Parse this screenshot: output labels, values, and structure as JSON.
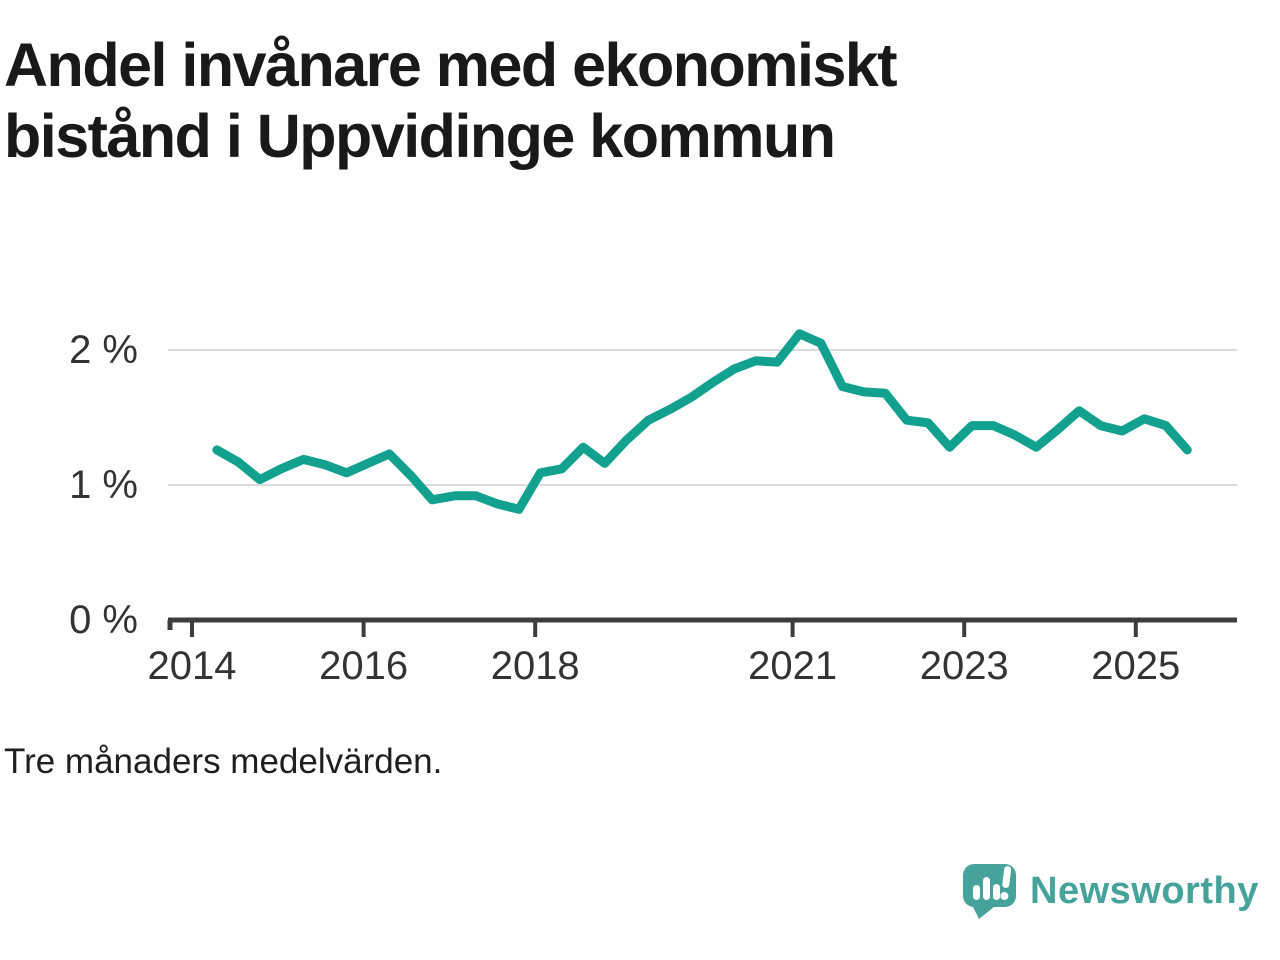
{
  "title": "Andel invånare med ekonomiskt bistånd i Uppvidinge kommun",
  "footnote": "Tre månaders medelvärden.",
  "brand": {
    "name": "Newsworthy",
    "color": "#45a39b",
    "mark": "speech-bubble-bar-chart-exclamation"
  },
  "colors": {
    "line": "#12a18f",
    "grid": "#dcdcdc",
    "axis": "#3d3d3d",
    "tick_text": "#333333",
    "title_text": "#191919"
  },
  "chart_data": {
    "type": "line",
    "title": "Andel invånare med ekonomiskt bistånd i Uppvidinge kommun",
    "note": "Tre månaders medelvärden.",
    "unit": "%",
    "xlabel": "",
    "ylabel": "",
    "grid": "horizontal",
    "legend": "none",
    "xlim": [
      2013.7,
      2026.2
    ],
    "ylim": [
      0,
      2.37
    ],
    "x_ticks": [
      {
        "year": 2014,
        "label": "2014"
      },
      {
        "year": 2016,
        "label": "2016"
      },
      {
        "year": 2018,
        "label": "2018"
      },
      {
        "year": 2021,
        "label": "2021"
      },
      {
        "year": 2023,
        "label": "2023"
      },
      {
        "year": 2025,
        "label": "2025"
      }
    ],
    "y_ticks": [
      {
        "value": 0,
        "label": "0 %"
      },
      {
        "value": 1,
        "label": "1 %"
      },
      {
        "value": 2,
        "label": "2 %"
      }
    ],
    "series": [
      {
        "name": "Andel invånare med ekonomiskt bistånd",
        "color": "#12a18f",
        "points": [
          [
            2014.29,
            1.26
          ],
          [
            2014.54,
            1.17
          ],
          [
            2014.79,
            1.04
          ],
          [
            2015.04,
            1.12
          ],
          [
            2015.3,
            1.19
          ],
          [
            2015.55,
            1.15
          ],
          [
            2015.8,
            1.09
          ],
          [
            2016.05,
            1.16
          ],
          [
            2016.3,
            1.23
          ],
          [
            2016.55,
            1.07
          ],
          [
            2016.8,
            0.89
          ],
          [
            2017.06,
            0.92
          ],
          [
            2017.31,
            0.92
          ],
          [
            2017.56,
            0.86
          ],
          [
            2017.81,
            0.82
          ],
          [
            2018.06,
            1.09
          ],
          [
            2018.31,
            1.12
          ],
          [
            2018.56,
            1.28
          ],
          [
            2018.81,
            1.16
          ],
          [
            2019.06,
            1.33
          ],
          [
            2019.32,
            1.48
          ],
          [
            2019.57,
            1.56
          ],
          [
            2019.82,
            1.65
          ],
          [
            2020.07,
            1.76
          ],
          [
            2020.32,
            1.86
          ],
          [
            2020.57,
            1.92
          ],
          [
            2020.82,
            1.91
          ],
          [
            2021.08,
            2.12
          ],
          [
            2021.33,
            2.05
          ],
          [
            2021.58,
            1.73
          ],
          [
            2021.83,
            1.69
          ],
          [
            2022.08,
            1.68
          ],
          [
            2022.33,
            1.48
          ],
          [
            2022.58,
            1.46
          ],
          [
            2022.83,
            1.28
          ],
          [
            2023.09,
            1.44
          ],
          [
            2023.34,
            1.44
          ],
          [
            2023.59,
            1.37
          ],
          [
            2023.84,
            1.28
          ],
          [
            2024.09,
            1.41
          ],
          [
            2024.34,
            1.55
          ],
          [
            2024.59,
            1.44
          ],
          [
            2024.84,
            1.4
          ],
          [
            2025.1,
            1.49
          ],
          [
            2025.35,
            1.44
          ],
          [
            2025.6,
            1.26
          ]
        ]
      }
    ]
  }
}
